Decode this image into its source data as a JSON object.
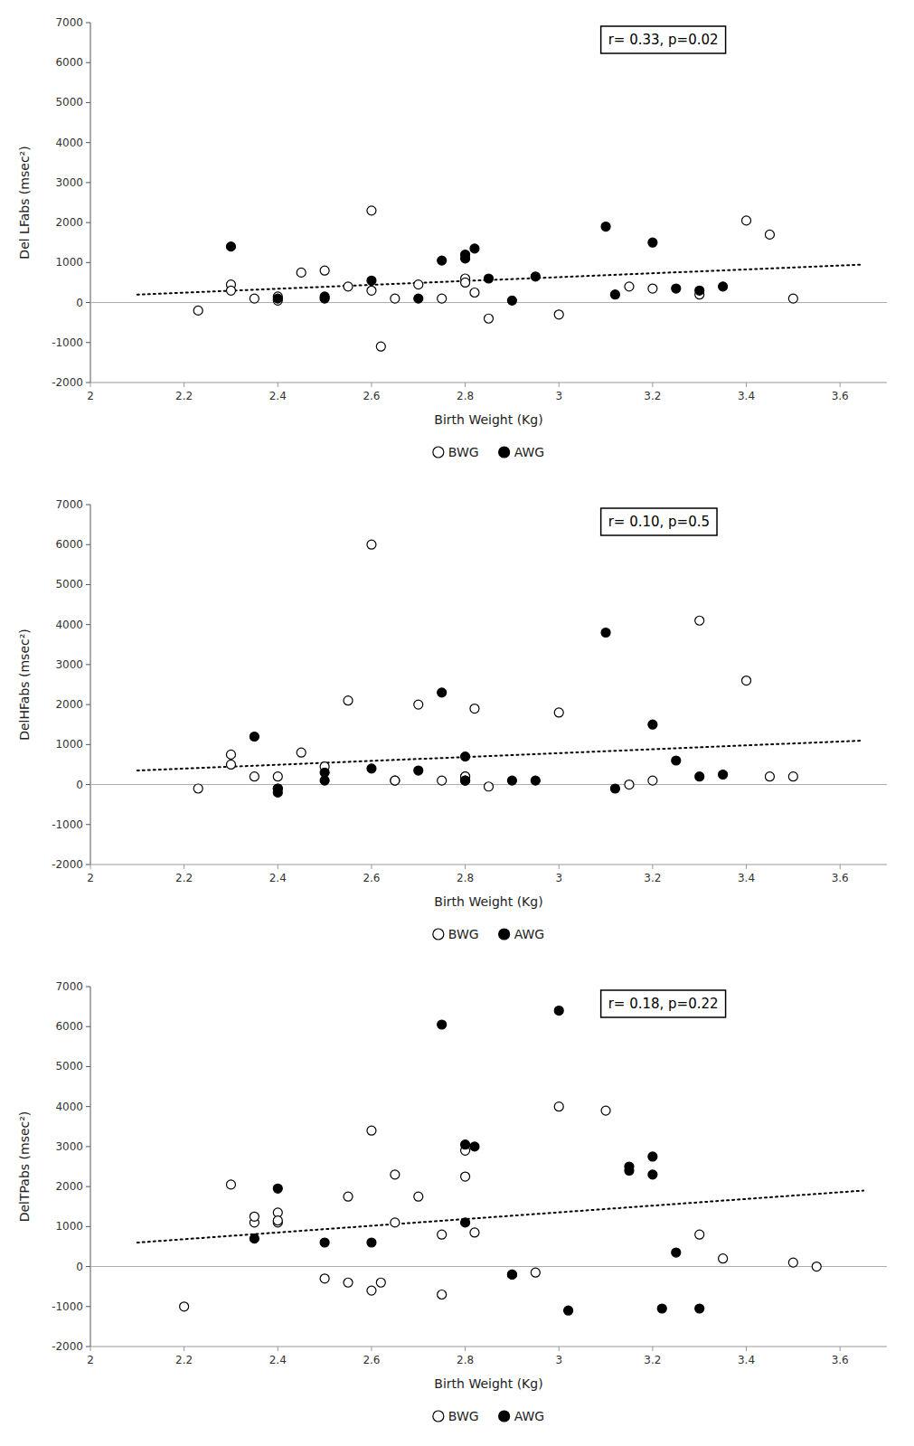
{
  "chart_data": [
    {
      "type": "scatter",
      "y_label": "Del LFabs (msec²)",
      "x_label": "Birth Weight (Kg)",
      "annotation": "r= 0.33, p=0.02",
      "xlim": [
        2.0,
        3.7
      ],
      "ylim": [
        -2000,
        7000
      ],
      "xticks": [
        2,
        2.2,
        2.4,
        2.6,
        2.8,
        3,
        3.2,
        3.4,
        3.6
      ],
      "yticks": [
        -2000,
        -1000,
        0,
        1000,
        2000,
        3000,
        4000,
        5000,
        6000,
        7000
      ],
      "hline": 0,
      "legend": "bottom",
      "grid": false,
      "series": [
        {
          "name": "BWG",
          "type": "scatter",
          "marker": "circle",
          "color": "white",
          "x": [
            2.23,
            2.3,
            2.3,
            2.35,
            2.4,
            2.4,
            2.45,
            2.5,
            2.55,
            2.6,
            2.6,
            2.62,
            2.65,
            2.7,
            2.75,
            2.8,
            2.8,
            2.82,
            2.85,
            3.0,
            3.15,
            3.2,
            3.3,
            3.4,
            3.45,
            3.5
          ],
          "values": [
            -200,
            450,
            300,
            100,
            50,
            150,
            750,
            800,
            400,
            2300,
            300,
            -1100,
            100,
            450,
            100,
            600,
            500,
            250,
            -400,
            -300,
            400,
            350,
            200,
            2050,
            1700,
            100
          ]
        },
        {
          "name": "AWG",
          "type": "scatter",
          "marker": "circle",
          "color": "black",
          "x": [
            2.3,
            2.4,
            2.5,
            2.5,
            2.6,
            2.7,
            2.75,
            2.8,
            2.8,
            2.82,
            2.85,
            2.9,
            2.95,
            3.1,
            3.12,
            3.2,
            3.25,
            3.3,
            3.35
          ],
          "values": [
            1400,
            100,
            100,
            150,
            550,
            100,
            1050,
            1100,
            1200,
            1350,
            600,
            50,
            650,
            1900,
            200,
            1500,
            350,
            300,
            400
          ]
        },
        {
          "type": "line",
          "line_style": "dotted",
          "color": "black",
          "x": [
            2.1,
            3.65
          ],
          "values": [
            200,
            950
          ]
        }
      ]
    },
    {
      "type": "scatter",
      "y_label": "DelHFabs (msec²)",
      "x_label": "Birth Weight (Kg)",
      "annotation": "r= 0.10, p=0.5",
      "xlim": [
        2.0,
        3.7
      ],
      "ylim": [
        -2000,
        7000
      ],
      "xticks": [
        2,
        2.2,
        2.4,
        2.6,
        2.8,
        3,
        3.2,
        3.4,
        3.6
      ],
      "yticks": [
        -2000,
        -1000,
        0,
        1000,
        2000,
        3000,
        4000,
        5000,
        6000,
        7000
      ],
      "hline": 0,
      "legend": "bottom",
      "grid": false,
      "series": [
        {
          "name": "BWG",
          "type": "scatter",
          "marker": "circle",
          "color": "white",
          "x": [
            2.23,
            2.3,
            2.3,
            2.35,
            2.4,
            2.4,
            2.45,
            2.5,
            2.55,
            2.6,
            2.65,
            2.65,
            2.7,
            2.75,
            2.8,
            2.8,
            2.82,
            2.85,
            3.0,
            3.15,
            3.2,
            3.3,
            3.4,
            3.45,
            3.5
          ],
          "values": [
            -100,
            750,
            500,
            200,
            -100,
            200,
            800,
            450,
            2100,
            6000,
            100,
            100,
            2000,
            100,
            200,
            200,
            1900,
            -50,
            1800,
            0,
            100,
            4100,
            2600,
            200,
            200
          ]
        },
        {
          "name": "AWG",
          "type": "scatter",
          "marker": "circle",
          "color": "black",
          "x": [
            2.35,
            2.4,
            2.4,
            2.5,
            2.5,
            2.6,
            2.7,
            2.75,
            2.8,
            2.8,
            2.8,
            2.9,
            2.95,
            3.1,
            3.12,
            3.2,
            3.25,
            3.3,
            3.35
          ],
          "values": [
            1200,
            -100,
            -200,
            300,
            100,
            400,
            350,
            2300,
            700,
            100,
            100,
            100,
            100,
            3800,
            -100,
            1500,
            600,
            200,
            250
          ]
        },
        {
          "type": "line",
          "line_style": "dotted",
          "color": "black",
          "x": [
            2.1,
            3.65
          ],
          "values": [
            350,
            1100
          ]
        }
      ]
    },
    {
      "type": "scatter",
      "y_label": "DelTPabs (msec²)",
      "x_label": "Birth Weight (Kg)",
      "annotation": "r= 0.18, p=0.22",
      "xlim": [
        2.0,
        3.7
      ],
      "ylim": [
        -2000,
        7000
      ],
      "xticks": [
        2,
        2.2,
        2.4,
        2.6,
        2.8,
        3,
        3.2,
        3.4,
        3.6
      ],
      "yticks": [
        -2000,
        -1000,
        0,
        1000,
        2000,
        3000,
        4000,
        5000,
        6000,
        7000
      ],
      "hline": 0,
      "legend": "bottom",
      "grid": false,
      "series": [
        {
          "name": "BWG",
          "type": "scatter",
          "marker": "circle",
          "color": "white",
          "x": [
            2.2,
            2.3,
            2.35,
            2.35,
            2.4,
            2.4,
            2.4,
            2.5,
            2.55,
            2.55,
            2.6,
            2.6,
            2.62,
            2.65,
            2.65,
            2.7,
            2.75,
            2.75,
            2.8,
            2.8,
            2.82,
            2.9,
            2.95,
            3.0,
            3.1,
            3.3,
            3.35,
            3.5,
            3.55
          ],
          "values": [
            -1000,
            2050,
            1100,
            1250,
            1350,
            1100,
            1150,
            -300,
            -400,
            1750,
            3400,
            -600,
            -400,
            2300,
            1100,
            1750,
            800,
            -700,
            2900,
            2250,
            850,
            -200,
            -150,
            4000,
            3900,
            800,
            200,
            100,
            0
          ]
        },
        {
          "name": "AWG",
          "type": "scatter",
          "marker": "circle",
          "color": "black",
          "x": [
            2.35,
            2.4,
            2.5,
            2.6,
            2.75,
            2.8,
            2.8,
            2.82,
            2.9,
            3.0,
            3.02,
            3.15,
            3.15,
            3.2,
            3.2,
            3.22,
            3.25,
            3.3
          ],
          "values": [
            700,
            1950,
            600,
            600,
            6050,
            1100,
            3050,
            3000,
            -200,
            6400,
            -1100,
            2500,
            2400,
            2750,
            2300,
            -1050,
            350,
            -1050
          ]
        },
        {
          "type": "line",
          "line_style": "dotted",
          "color": "black",
          "x": [
            2.1,
            3.65
          ],
          "values": [
            600,
            1900
          ]
        }
      ]
    }
  ]
}
